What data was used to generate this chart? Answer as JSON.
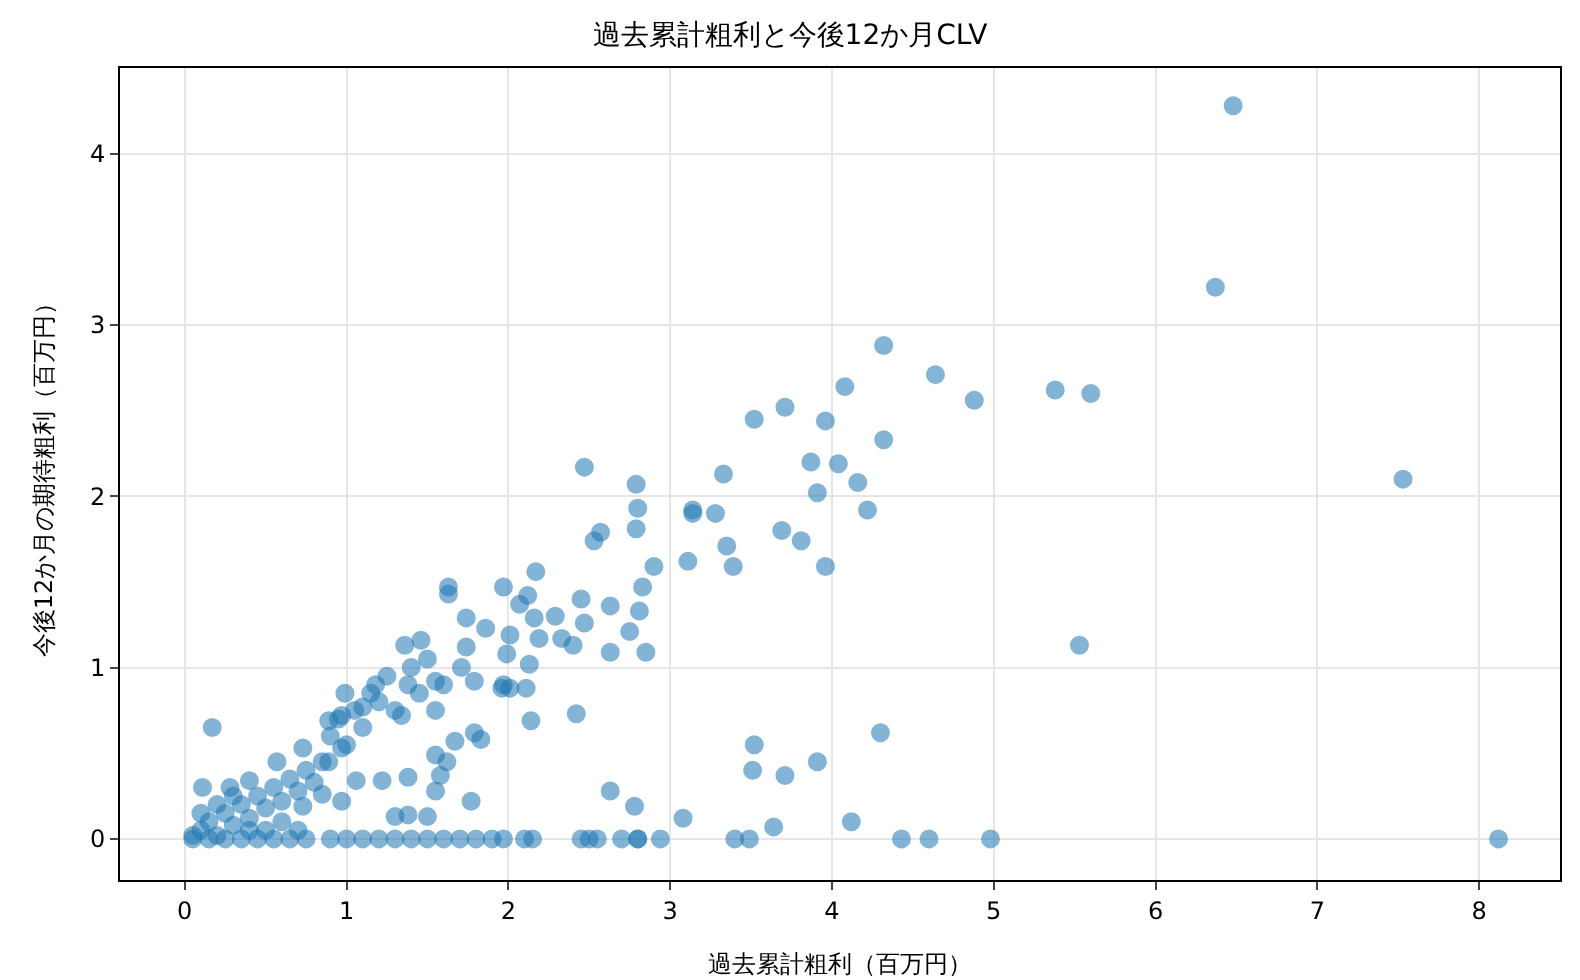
{
  "chart_data": {
    "type": "scatter",
    "title": "過去累計粗利と今後12か月CLV",
    "xlabel": "過去累計粗利（百万円）",
    "ylabel": "今後12か月の期待粗利（百万円）",
    "xlim": [
      -0.4,
      8.5
    ],
    "ylim": [
      -0.24,
      4.5
    ],
    "xticks": [
      0,
      1,
      2,
      3,
      4,
      5,
      6,
      7,
      8
    ],
    "yticks": [
      0,
      1,
      2,
      3,
      4
    ],
    "grid": true,
    "marker": "circle",
    "series": [
      {
        "color": "#1f77b4",
        "x": [
          6.48,
          6.37,
          7.53,
          8.12,
          5.53,
          5.6,
          5.38,
          4.88,
          4.98,
          4.6,
          4.43,
          4.12,
          4.3,
          4.32,
          4.64,
          4.08,
          4.32,
          4.16,
          4.22,
          4.04,
          3.87,
          3.91,
          3.96,
          3.71,
          3.52,
          3.33,
          3.28,
          3.14,
          3.35,
          3.39,
          3.69,
          3.81,
          3.96,
          3.11,
          3.52,
          3.51,
          3.71,
          3.91,
          3.64,
          3.4,
          3.49,
          3.08,
          2.94,
          2.8,
          2.78,
          2.63,
          2.47,
          2.79,
          2.8,
          2.79,
          2.57,
          2.53,
          3.14,
          2.9,
          2.83,
          2.81,
          2.63,
          2.45,
          2.47,
          2.4,
          2.33,
          2.29,
          2.19,
          2.17,
          2.12,
          2.16,
          2.07,
          1.97,
          1.99,
          2.63,
          2.85,
          2.75,
          2.14,
          2.42,
          1.96,
          2.01,
          2.11,
          2.13,
          1.63,
          1.63,
          1.74,
          1.83,
          1.79,
          1.97,
          2.1,
          2.15,
          2.45,
          2.5,
          2.55,
          2.7,
          2.8,
          0.17,
          1.36,
          1.46,
          0.99,
          1.18,
          1.38,
          1.55,
          1.86,
          2.01,
          1.74,
          1.71,
          1.79,
          1.97,
          1.67,
          1.55,
          1.62,
          1.58,
          1.55,
          1.77,
          1.38,
          1.22,
          1.34,
          0.97,
          1.06,
          0.97,
          0.85,
          0.73,
          1.3,
          1.38,
          1.5,
          0.11,
          0.89,
          0.73,
          0.57,
          0.4,
          0.28,
          0.97,
          1.1,
          0.89,
          0.05,
          0.1,
          0.15,
          0.2,
          0.25,
          0.3,
          0.35,
          0.4,
          0.45,
          0.5,
          0.55,
          0.6,
          0.65,
          0.7,
          0.75,
          0.8,
          0.1,
          0.2,
          0.3,
          0.4,
          0.5,
          0.6,
          0.7,
          0.85,
          0.9,
          0.95,
          1.0,
          1.05,
          1.1,
          1.15,
          1.2,
          1.25,
          1.3,
          1.4,
          1.45,
          1.5,
          1.55,
          1.6,
          0.05,
          0.15,
          0.25,
          0.35,
          0.45,
          0.55,
          0.65,
          0.75,
          0.9,
          1.0,
          1.1,
          1.2,
          1.3,
          1.4,
          1.5,
          1.6,
          1.7,
          1.8,
          1.9
        ],
        "values": [
          4.28,
          3.22,
          2.1,
          0,
          1.13,
          2.6,
          2.62,
          2.56,
          0,
          0,
          0,
          0.1,
          0.62,
          2.88,
          2.71,
          2.64,
          2.33,
          2.08,
          1.92,
          2.19,
          2.2,
          2.02,
          2.44,
          2.52,
          2.45,
          2.13,
          1.9,
          1.9,
          1.71,
          1.59,
          1.8,
          1.74,
          1.59,
          1.62,
          0.55,
          0.4,
          0.37,
          0.45,
          0.07,
          0,
          0,
          0.12,
          0,
          0,
          0.19,
          0.28,
          2.17,
          2.07,
          1.93,
          1.81,
          1.79,
          1.74,
          1.92,
          1.59,
          1.47,
          1.33,
          1.36,
          1.4,
          1.26,
          1.13,
          1.17,
          1.3,
          1.17,
          1.56,
          1.42,
          1.29,
          1.37,
          1.47,
          1.08,
          1.09,
          1.09,
          1.21,
          0.69,
          0.73,
          0.88,
          0.88,
          0.88,
          1.02,
          1.47,
          1.43,
          1.29,
          0.58,
          0.62,
          0,
          0,
          0,
          0,
          0,
          0,
          0,
          0,
          0.65,
          1.13,
          1.16,
          0.85,
          0.9,
          0.9,
          0.92,
          1.23,
          1.19,
          1.12,
          1.0,
          0.92,
          0.9,
          0.57,
          0.49,
          0.45,
          0.37,
          0.28,
          0.22,
          0.36,
          0.34,
          0.72,
          0.53,
          0.34,
          0.22,
          0.26,
          0.19,
          0.13,
          0.14,
          0.13,
          0.3,
          0.69,
          0.53,
          0.45,
          0.34,
          0.3,
          0.72,
          0.77,
          0.45,
          0.02,
          0.05,
          0.1,
          0.02,
          0.15,
          0.08,
          0.2,
          0.12,
          0.25,
          0.18,
          0.3,
          0.22,
          0.35,
          0.28,
          0.4,
          0.33,
          0.15,
          0.2,
          0.25,
          0.05,
          0.05,
          0.1,
          0.05,
          0.45,
          0.6,
          0.7,
          0.55,
          0.75,
          0.65,
          0.85,
          0.8,
          0.95,
          0.75,
          1.0,
          0.85,
          1.05,
          0.75,
          0.9,
          0,
          0,
          0,
          0,
          0,
          0,
          0,
          0,
          0,
          0,
          0,
          0,
          0,
          0,
          0,
          0,
          0,
          0,
          0
        ]
      }
    ]
  }
}
